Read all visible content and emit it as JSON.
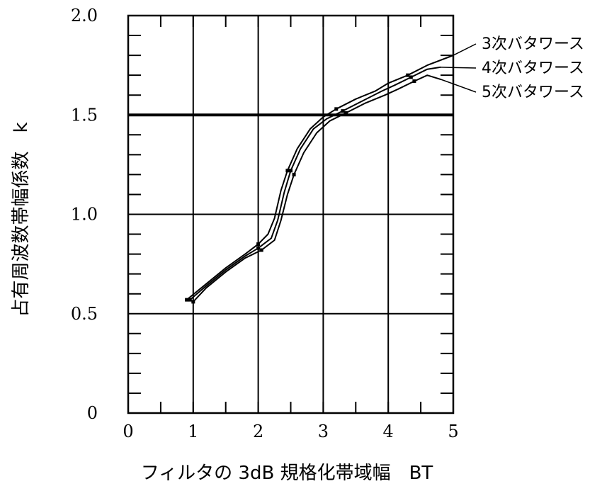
{
  "chart_data": {
    "type": "line",
    "xlabel": "フィルタの 3dB 規格化帯域幅　BT",
    "ylabel": "占有周波数帯幅係数　k",
    "xlim": [
      0,
      5
    ],
    "ylim": [
      0,
      2.0
    ],
    "x_ticks": [
      "0",
      "1",
      "2",
      "3",
      "4",
      "5"
    ],
    "y_ticks": [
      "0",
      "0.5",
      "1.0",
      "1.5",
      "2.0"
    ],
    "grid": true,
    "legend_placement": "right",
    "series": [
      {
        "name": "3次バタワース",
        "x": [
          0.9,
          1.2,
          1.5,
          1.8,
          2.0,
          2.15,
          2.25,
          2.35,
          2.45,
          2.6,
          2.8,
          3.0,
          3.2,
          3.5,
          3.8,
          4.0,
          4.3,
          4.6,
          5.0
        ],
        "y": [
          0.57,
          0.65,
          0.73,
          0.8,
          0.85,
          0.9,
          0.98,
          1.12,
          1.22,
          1.33,
          1.43,
          1.49,
          1.53,
          1.58,
          1.62,
          1.66,
          1.7,
          1.75,
          1.8
        ]
      },
      {
        "name": "4次バタワース",
        "x": [
          0.95,
          1.2,
          1.5,
          1.8,
          2.0,
          2.2,
          2.3,
          2.4,
          2.5,
          2.65,
          2.85,
          3.05,
          3.3,
          3.6,
          3.9,
          4.1,
          4.35,
          4.6,
          4.8
        ],
        "y": [
          0.57,
          0.64,
          0.72,
          0.79,
          0.83,
          0.88,
          0.97,
          1.11,
          1.22,
          1.33,
          1.43,
          1.48,
          1.52,
          1.57,
          1.62,
          1.65,
          1.69,
          1.73,
          1.74
        ]
      },
      {
        "name": "5次バタワース",
        "x": [
          1.0,
          1.2,
          1.5,
          1.8,
          2.05,
          2.25,
          2.35,
          2.45,
          2.55,
          2.7,
          2.9,
          3.1,
          3.35,
          3.65,
          3.95,
          4.15,
          4.4,
          4.6,
          4.8
        ],
        "y": [
          0.56,
          0.63,
          0.71,
          0.78,
          0.82,
          0.87,
          0.97,
          1.1,
          1.2,
          1.31,
          1.41,
          1.47,
          1.51,
          1.56,
          1.6,
          1.63,
          1.67,
          1.7,
          1.68
        ]
      }
    ]
  }
}
